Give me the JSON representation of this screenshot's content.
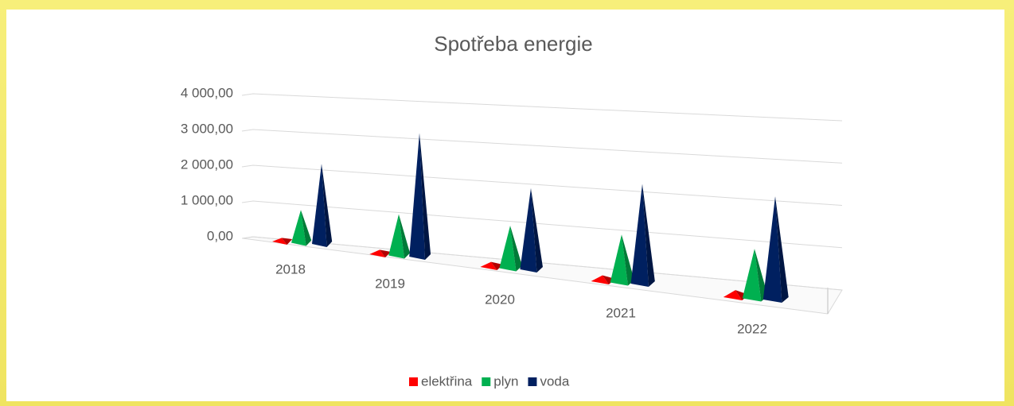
{
  "chart_data": {
    "type": "pyramid3d",
    "title": "Spotřeba energie",
    "categories": [
      "2018",
      "2019",
      "2020",
      "2021",
      "2022"
    ],
    "series": [
      {
        "name": "elektřina",
        "color": "#ff0000",
        "values": [
          100,
          120,
          130,
          150,
          170
        ]
      },
      {
        "name": "plyn",
        "color": "#00b050",
        "values": [
          900,
          1100,
          1100,
          1200,
          1200
        ]
      },
      {
        "name": "voda",
        "color": "#002060",
        "values": [
          2200,
          3300,
          2100,
          2500,
          2500
        ]
      }
    ],
    "ylim": [
      0,
      4000
    ],
    "yticks": [
      {
        "value": 0,
        "label": "0,00"
      },
      {
        "value": 1000,
        "label": "1 000,00"
      },
      {
        "value": 2000,
        "label": "2 000,00"
      },
      {
        "value": 3000,
        "label": "3 000,00"
      },
      {
        "value": 4000,
        "label": "4 000,00"
      }
    ],
    "grid": true,
    "legend": "bottom"
  }
}
